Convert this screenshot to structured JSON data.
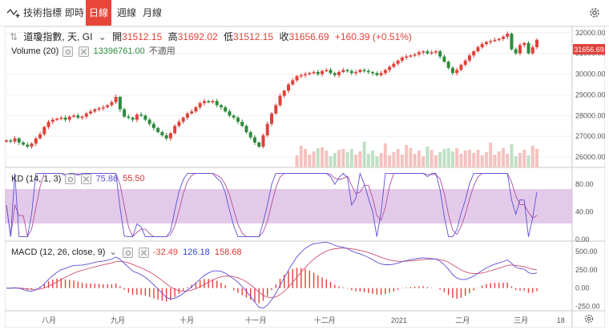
{
  "toolbar": {
    "indicators_label": "技術指標",
    "tabs": [
      {
        "label": "即時",
        "active": false
      },
      {
        "label": "日線",
        "active": true
      },
      {
        "label": "週線",
        "active": false
      },
      {
        "label": "月線",
        "active": false
      }
    ],
    "accent_color": "#e8463a"
  },
  "main_legend": {
    "symbol": "道瓊指數, 天, GI",
    "open_label": "開",
    "open": "31512.15",
    "high_label": "高",
    "high": "31692.02",
    "low_label": "低",
    "low": "31512.15",
    "close_label": "收",
    "close": "31656.69",
    "change": "+160.39 (+0.51%)"
  },
  "volume_legend": {
    "label": "Volume (20)",
    "value": "13396761.00",
    "ma_text": "不適用"
  },
  "kd_legend": {
    "label": "KD (14, 1, 3)",
    "k": "75.86",
    "d": "55.50"
  },
  "macd_legend": {
    "label": "MACD (12, 26, close, 9)",
    "hist": "-32.49",
    "macd": "126.18",
    "signal": "158.68"
  },
  "last_price_tag": "31656.69",
  "x_axis": [
    "八月",
    "九月",
    "十月",
    "十一月",
    "十二月",
    "2021",
    "二月",
    "三月",
    "18"
  ],
  "colors": {
    "up": "#e0413a",
    "down": "#2e8b3d",
    "k_line": "#5b4fd9",
    "d_line": "#b04fa0",
    "kd_band": "#d9b8e2"
  },
  "chart_data": [
    {
      "type": "candlestick",
      "title": "道瓊指數, 天, GI",
      "y_ticks": [
        "32000.00",
        "31000.00",
        "30000.00",
        "29000.00",
        "28000.00",
        "27000.00",
        "26000.00"
      ],
      "ylim": [
        25500,
        32300
      ],
      "close_series": [
        26800,
        26750,
        26900,
        26700,
        26600,
        26500,
        26650,
        26900,
        27100,
        27450,
        27700,
        27800,
        27850,
        27900,
        27800,
        27950,
        28000,
        27900,
        27950,
        28100,
        28200,
        28300,
        28350,
        28400,
        28500,
        28650,
        28900,
        28300,
        27950,
        27900,
        27800,
        28050,
        28000,
        27800,
        27600,
        27400,
        27200,
        27050,
        26900,
        27150,
        27500,
        27700,
        27900,
        28100,
        28200,
        28400,
        28600,
        28700,
        28650,
        28700,
        28500,
        28400,
        28200,
        28000,
        27900,
        27700,
        27500,
        27200,
        26950,
        26700,
        26500,
        27050,
        27600,
        28100,
        28500,
        28950,
        29200,
        29500,
        29700,
        29900,
        29950,
        30000,
        30050,
        30100,
        30000,
        30150,
        30200,
        30050,
        29950,
        30100,
        30200,
        30150,
        30050,
        30100,
        30200,
        30150,
        30100,
        30050,
        29950,
        30050,
        30200,
        30350,
        30500,
        30650,
        30800,
        30850,
        30900,
        30950,
        31050,
        31100,
        31000,
        31050,
        31100,
        30850,
        30600,
        30300,
        30050,
        30200,
        30450,
        30650,
        30900,
        31100,
        31300,
        31450,
        31550,
        31600,
        31650,
        31700,
        31800,
        31950,
        31200,
        31000,
        31400,
        31500,
        31000,
        31300,
        31656.69
      ]
    },
    {
      "type": "bar",
      "title": "Volume (20)",
      "latest": 13396761.0
    },
    {
      "type": "line",
      "title": "KD (14, 1, 3)",
      "y_ticks": [
        "80.00",
        "40.00",
        "0.00"
      ],
      "ylim": [
        0,
        100
      ],
      "band": [
        20,
        80
      ],
      "series": [
        {
          "name": "K",
          "latest": 75.86
        },
        {
          "name": "D",
          "latest": 55.5
        }
      ]
    },
    {
      "type": "bar",
      "title": "MACD (12, 26, close, 9)",
      "y_ticks": [
        "500.00",
        "250.00",
        "0.00",
        "-250.00"
      ],
      "ylim": [
        -300,
        600
      ],
      "series": [
        {
          "name": "Histogram",
          "latest": -32.49
        },
        {
          "name": "MACD",
          "latest": 126.18
        },
        {
          "name": "Signal",
          "latest": 158.68
        }
      ]
    }
  ]
}
